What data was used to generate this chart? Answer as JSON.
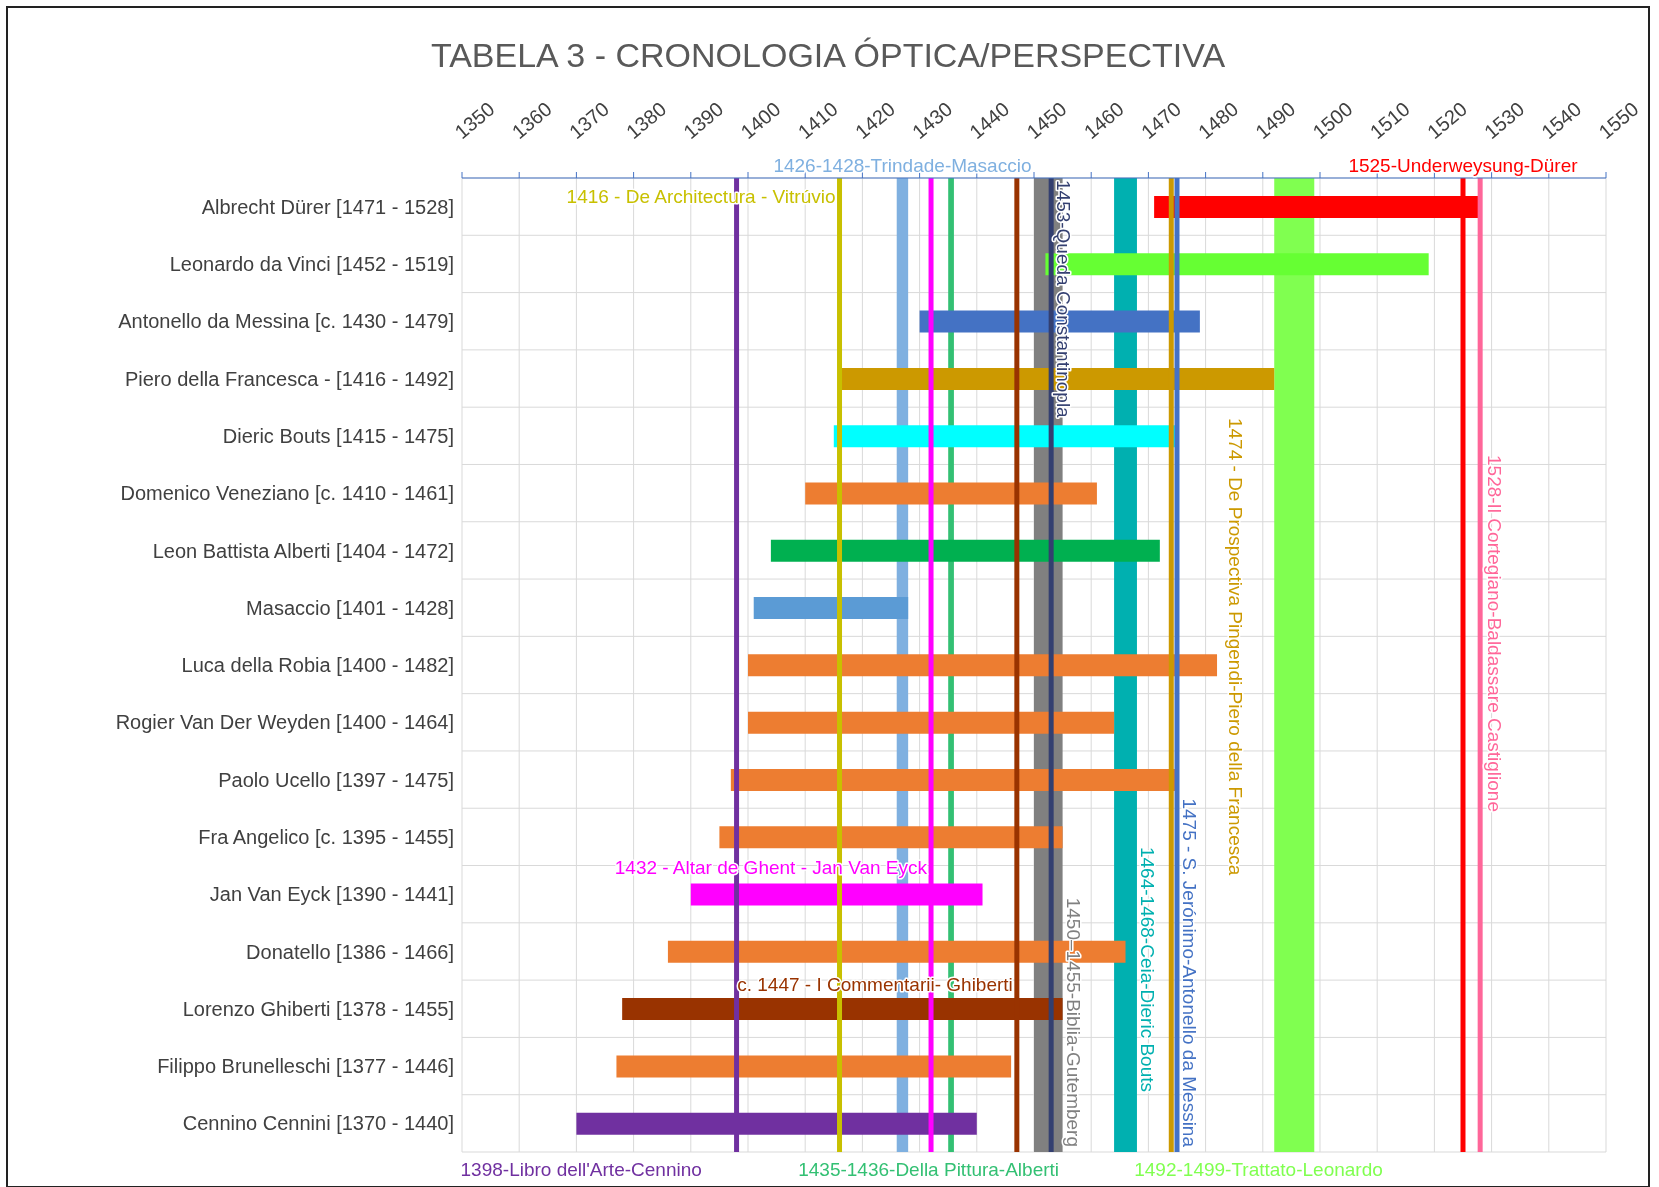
{
  "chart_data": {
    "type": "bar",
    "title": "TABELA 3 - CRONOLOGIA ÓPTICA/PERSPECTIVA",
    "orientation": "horizontal",
    "categories": [
      "Albrecht Dürer [1471 - 1528]",
      "Leonardo da Vinci [1452 - 1519]",
      "Antonello da Messina [c. 1430 - 1479]",
      "Piero della Francesca - [1416 - 1492]",
      "Dieric Bouts [1415 - 1475]",
      "Domenico Veneziano [c. 1410 - 1461]",
      "Leon Battista Alberti [1404 - 1472]",
      "Masaccio [1401 - 1428]",
      "Luca della Robia [1400 - 1482]",
      "Rogier Van Der Weyden [1400 - 1464]",
      "Paolo Ucello [1397 - 1475]",
      "Fra Angelico [c. 1395 - 1455]",
      "Jan Van Eyck [1390 - 1441]",
      "Donatello [1386 - 1466]",
      "Lorenzo Ghiberti [1378 - 1455]",
      "Filippo Brunelleschi [1377 - 1446]",
      "Cennino Cennini [1370 - 1440]"
    ],
    "base": [
      1471,
      1452,
      1430,
      1416,
      1415,
      1410,
      1404,
      1401,
      1400,
      1400,
      1397,
      1395,
      1390,
      1386,
      1378,
      1377,
      1370
    ],
    "values": [
      57,
      67,
      49,
      76,
      60,
      51,
      68,
      27,
      82,
      64,
      78,
      60,
      51,
      80,
      77,
      69,
      70
    ],
    "colors": [
      "#ff0000",
      "#66ff33",
      "#4472c4",
      "#cc9900",
      "#00ffff",
      "#ed7d31",
      "#00b050",
      "#5b9bd5",
      "#ed7d31",
      "#ed7d31",
      "#ed7d31",
      "#ed7d31",
      "#ff00ff",
      "#ed7d31",
      "#993300",
      "#ed7d31",
      "#7030a0"
    ],
    "xlim": [
      1350,
      1550
    ],
    "xticks": [
      1350,
      1360,
      1370,
      1380,
      1390,
      1400,
      1410,
      1420,
      1430,
      1440,
      1450,
      1460,
      1470,
      1480,
      1490,
      1500,
      1510,
      1520,
      1530,
      1540,
      1550
    ],
    "grid": true,
    "ref_lines": [
      {
        "axis": "x",
        "value": 1398,
        "label": "1398-Libro dell'Arte-Cennino",
        "color": "#7030a0"
      },
      {
        "axis": "x",
        "value": 1416,
        "label": "1416 - De Architectura - Vitrúvio",
        "color": "#c8c000"
      },
      {
        "axis": "x",
        "value": 1432,
        "label": "1432 - Altar de Ghent - Jan Van Eyck",
        "color": "#ff00ff"
      },
      {
        "axis": "x",
        "value": 1447,
        "label": "c. 1447 - I Commentarii- Ghiberti",
        "color": "#993300"
      },
      {
        "axis": "x",
        "value": 1453,
        "label": "1453-Queda Constantinopla",
        "color": "#333f70"
      },
      {
        "axis": "x",
        "value": 1474,
        "label": "1474 - De Prospectiva Pingendi-Piero della Francesca",
        "color": "#cc9900"
      },
      {
        "axis": "x",
        "value": 1475,
        "label": "1475 - S. Jerónimo-Antonello da Messina",
        "color": "#4472c4"
      },
      {
        "axis": "x",
        "value": 1525,
        "label": "1525-Underweysung-Dürer",
        "color": "#ff0000"
      },
      {
        "axis": "x",
        "value": 1528,
        "label": "1528-Il Cortegiano-Baldassare Castiglione",
        "color": "#ff6699"
      }
    ],
    "bands": [
      {
        "axis": "x",
        "from": 1426,
        "to": 1428,
        "label": "1426-1428-Trindade-Masaccio",
        "color": "#7fb0e0"
      },
      {
        "axis": "x",
        "from": 1435,
        "to": 1436,
        "label": "1435-1436-Della Pittura-Alberti",
        "color": "#33c073"
      },
      {
        "axis": "x",
        "from": 1450,
        "to": 1455,
        "label": "1450–1455-Biblia-Gutemberg",
        "color": "#808080"
      },
      {
        "axis": "x",
        "from": 1464,
        "to": 1468,
        "label": "1464-1468-Ceia-Dieric Bouts",
        "color": "#00b0b0"
      },
      {
        "axis": "x",
        "from": 1492,
        "to": 1499,
        "label": "1492-1499-Trattato-Leonardo",
        "color": "#80ff50"
      }
    ]
  }
}
